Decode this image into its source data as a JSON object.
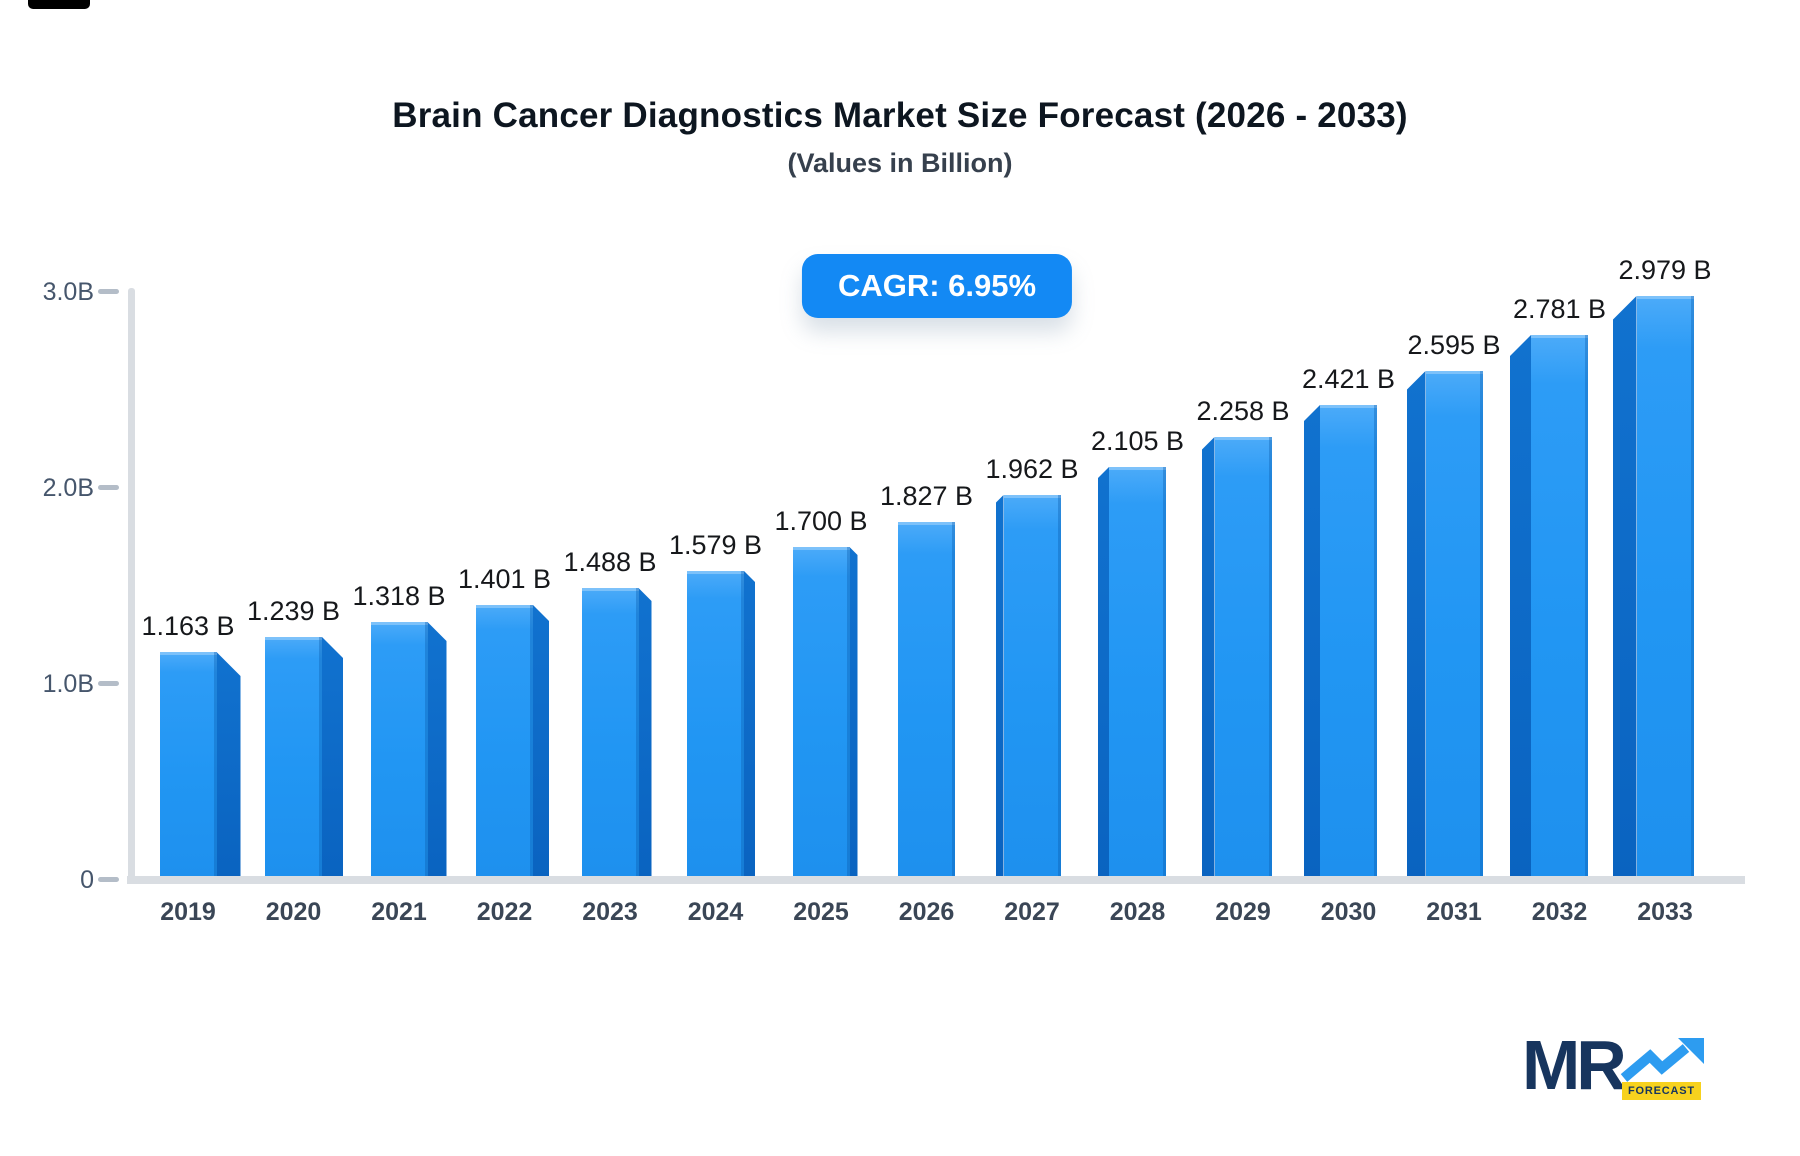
{
  "title": "Brain Cancer Diagnostics Market Size Forecast (2026 - 2033)",
  "subtitle": "(Values in Billion)",
  "cagr_label": "CAGR: 6.95%",
  "colors": {
    "accent_badge": "#1389f4",
    "bar_face": "#2196f3",
    "bar_face_light": "#4cabf9",
    "bar_side_dark": "#0a63c0",
    "axis_line": "#d9dde2",
    "tick_dash": "#b4bdc8",
    "tick_text": "#46566c",
    "value_text": "#16181b",
    "year_text": "#3a4656",
    "logo_navy": "#17355e",
    "logo_blue": "#2d9cf0",
    "logo_yellow": "#f7d21e"
  },
  "chart_data": {
    "type": "bar",
    "title": "Brain Cancer Diagnostics Market Size Forecast (2026 - 2033)",
    "subtitle": "(Values in Billion)",
    "xlabel": "",
    "ylabel": "",
    "ylim": [
      0,
      3
    ],
    "grid": false,
    "legend": "none",
    "categories": [
      "2019",
      "2020",
      "2021",
      "2022",
      "2023",
      "2024",
      "2025",
      "2026",
      "2027",
      "2028",
      "2029",
      "2030",
      "2031",
      "2032",
      "2033"
    ],
    "values": [
      1.163,
      1.239,
      1.318,
      1.401,
      1.488,
      1.579,
      1.7,
      1.827,
      1.962,
      2.105,
      2.258,
      2.421,
      2.595,
      2.781,
      2.979
    ],
    "value_labels": [
      "1.163 B",
      "1.239 B",
      "1.318 B",
      "1.401 B",
      "1.488 B",
      "1.579 B",
      "1.700 B",
      "1.827 B",
      "1.962 B",
      "2.105 B",
      "2.258 B",
      "2.421 B",
      "2.595 B",
      "2.781 B",
      "2.979 B"
    ],
    "y_ticks": [
      {
        "label": "3.0B",
        "value": 3.0
      },
      {
        "label": "2.0B",
        "value": 2.0
      },
      {
        "label": "1.0B",
        "value": 1.0
      },
      {
        "label": "0",
        "value": 0.0
      }
    ]
  },
  "logo": {
    "text": "MR",
    "sub": "FORECAST"
  }
}
